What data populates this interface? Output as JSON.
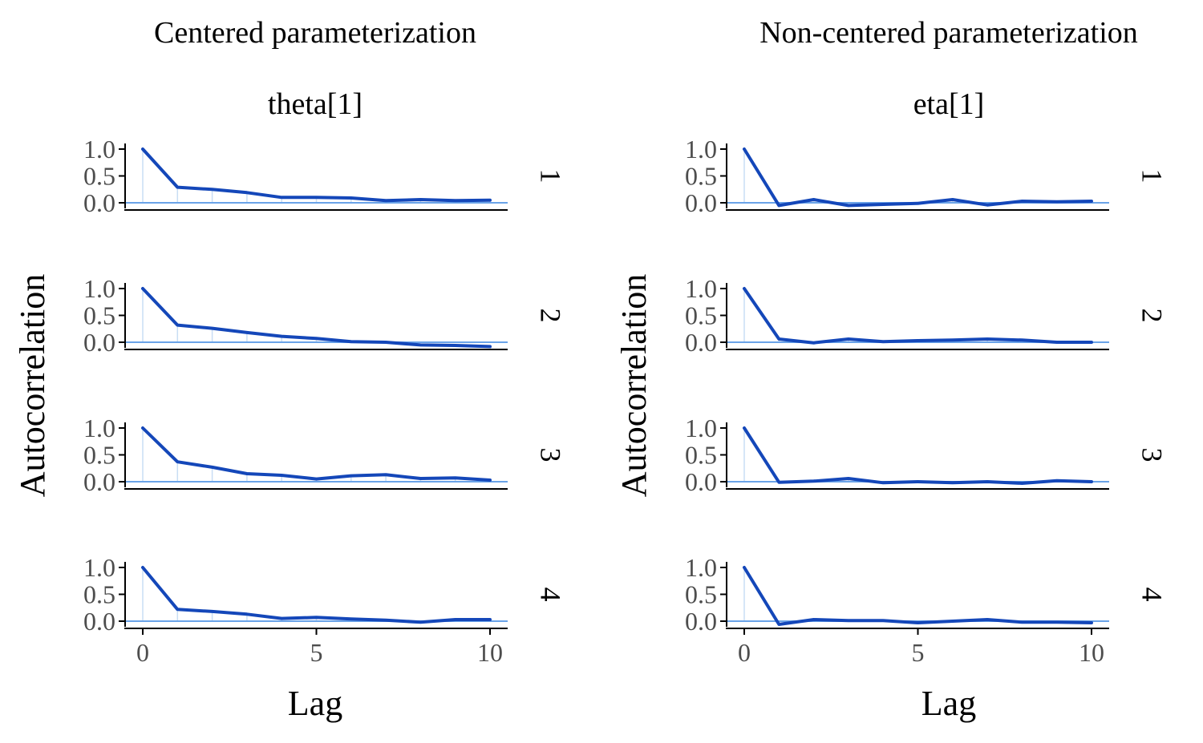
{
  "chart_data": [
    {
      "type": "line",
      "title": "Centered parameterization",
      "subtitle": "theta[1]",
      "xlabel": "Lag",
      "ylabel": "Autocorrelation",
      "x": [
        0,
        1,
        2,
        3,
        4,
        5,
        6,
        7,
        8,
        9,
        10
      ],
      "xticks": [
        0,
        5,
        10
      ],
      "yticks": [
        0.0,
        0.5,
        1.0
      ],
      "ytick_labels": [
        "0.0",
        "0.5",
        "1.0"
      ],
      "grid": false,
      "series": [
        {
          "name": "1",
          "values": [
            1.0,
            0.29,
            0.25,
            0.19,
            0.1,
            0.1,
            0.09,
            0.04,
            0.06,
            0.04,
            0.05
          ]
        },
        {
          "name": "2",
          "values": [
            1.0,
            0.32,
            0.26,
            0.18,
            0.11,
            0.07,
            0.01,
            0.0,
            -0.05,
            -0.06,
            -0.08
          ]
        },
        {
          "name": "3",
          "values": [
            1.0,
            0.37,
            0.27,
            0.15,
            0.12,
            0.05,
            0.11,
            0.13,
            0.06,
            0.07,
            0.03
          ]
        },
        {
          "name": "4",
          "values": [
            1.0,
            0.22,
            0.18,
            0.13,
            0.05,
            0.07,
            0.04,
            0.02,
            -0.02,
            0.03,
            0.03
          ]
        }
      ]
    },
    {
      "type": "line",
      "title": "Non-centered parameterization",
      "subtitle": "eta[1]",
      "xlabel": "Lag",
      "ylabel": "Autocorrelation",
      "x": [
        0,
        1,
        2,
        3,
        4,
        5,
        6,
        7,
        8,
        9,
        10
      ],
      "xticks": [
        0,
        5,
        10
      ],
      "yticks": [
        0.0,
        0.5,
        1.0
      ],
      "ytick_labels": [
        "0.0",
        "0.5",
        "1.0"
      ],
      "grid": false,
      "series": [
        {
          "name": "1",
          "values": [
            1.0,
            -0.05,
            0.06,
            -0.05,
            -0.03,
            -0.01,
            0.06,
            -0.04,
            0.03,
            0.02,
            0.03
          ]
        },
        {
          "name": "2",
          "values": [
            1.0,
            0.06,
            -0.01,
            0.06,
            0.01,
            0.03,
            0.04,
            0.06,
            0.04,
            0.0,
            0.0
          ]
        },
        {
          "name": "3",
          "values": [
            1.0,
            -0.01,
            0.01,
            0.06,
            -0.02,
            0.0,
            -0.02,
            0.0,
            -0.03,
            0.02,
            0.0
          ]
        },
        {
          "name": "4",
          "values": [
            1.0,
            -0.06,
            0.03,
            0.01,
            0.01,
            -0.03,
            0.0,
            0.03,
            -0.02,
            -0.02,
            -0.03
          ]
        }
      ]
    }
  ],
  "colors": {
    "line": "#1447b9",
    "zero_line": "#6aa3e8",
    "lag_spike": "#c8ddf4",
    "axis": "#000000",
    "tick_label": "#4d4d4d",
    "text": "#000000"
  }
}
